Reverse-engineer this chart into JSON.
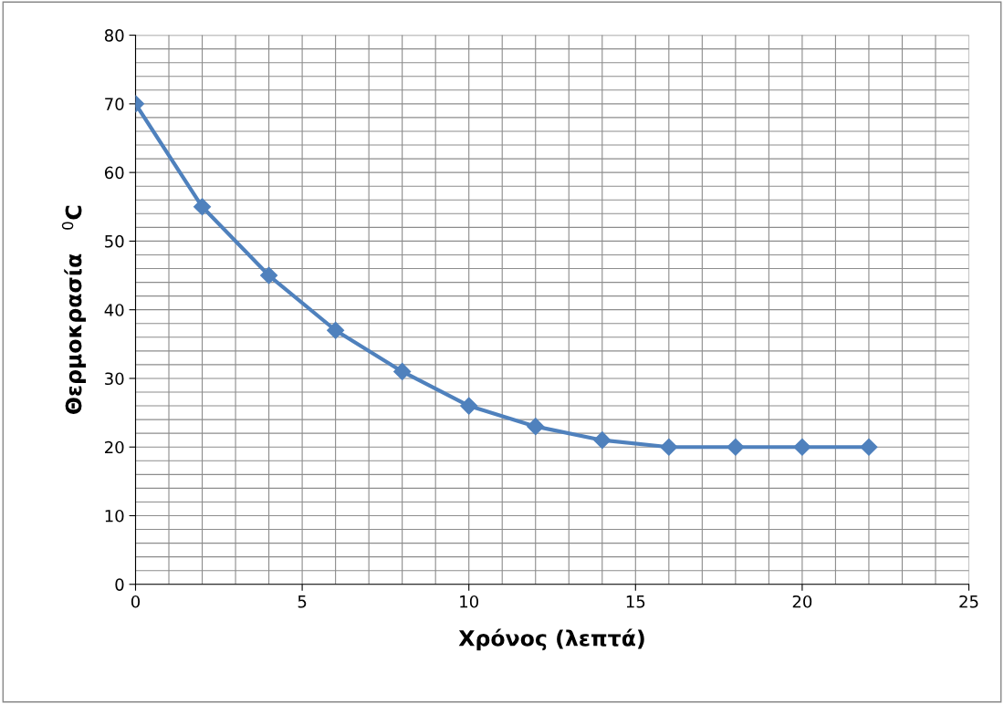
{
  "chart_data": {
    "type": "line",
    "xlabel": "Χρόνος (λεπτά)",
    "ylabel": "Θερμοκρασία   $^{0}$C",
    "x": [
      0,
      2,
      4,
      6,
      8,
      10,
      12,
      14,
      16,
      18,
      20,
      22
    ],
    "series": [
      {
        "color": "#4f81bd",
        "values": [
          70,
          55,
          45,
          37,
          31,
          26,
          23,
          21,
          20,
          20,
          20,
          20
        ]
      }
    ],
    "xlim": [
      0,
      25
    ],
    "xticks": [
      0,
      5,
      10,
      15,
      20,
      25
    ],
    "ylim": [
      0,
      80
    ],
    "yticks": [
      0,
      10,
      20,
      30,
      40,
      50,
      60,
      70,
      80
    ],
    "grid": true,
    "marker": "diamond",
    "line_style": "solid"
  }
}
